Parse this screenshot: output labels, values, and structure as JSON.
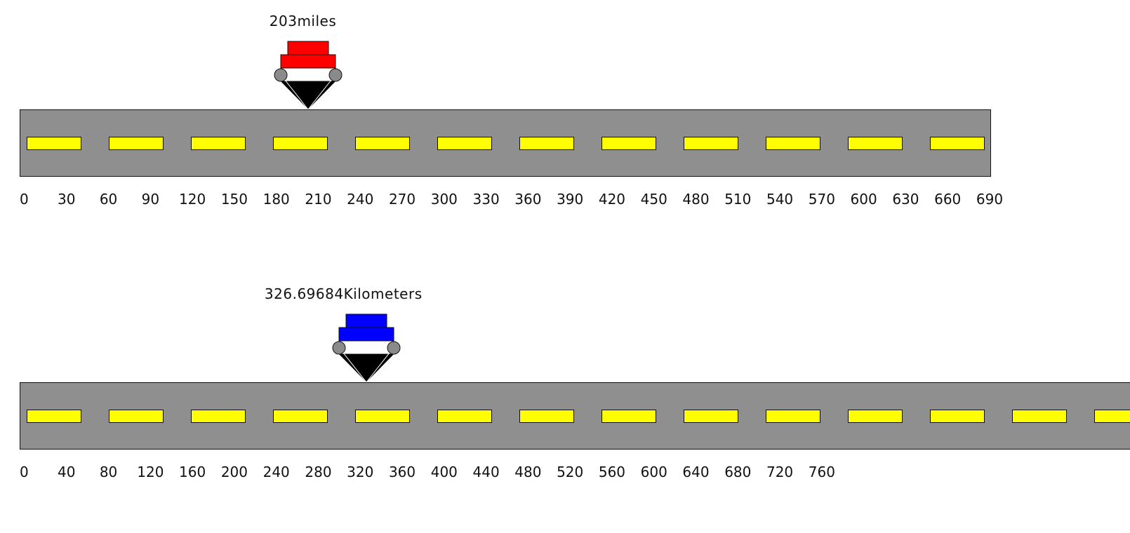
{
  "colors": {
    "road": "#8f8f8f",
    "lane_marking": "#ffff00",
    "wheel": "#8a8a8a",
    "miles_car": "#ff0000",
    "km_car": "#0000ff"
  },
  "miles_track": {
    "readout_value": "203",
    "readout_unit": "miles",
    "position_value": 203,
    "scale_max": 690,
    "ticks": [
      "0",
      "30",
      "60",
      "90",
      "120",
      "150",
      "180",
      "210",
      "240",
      "270",
      "300",
      "330",
      "360",
      "390",
      "420",
      "450",
      "480",
      "510",
      "540",
      "570",
      "600",
      "630",
      "660",
      "690"
    ]
  },
  "km_track": {
    "readout_value": "326.69684",
    "readout_unit": "Kilometers",
    "position_value": 326.69684,
    "scale_step": 40,
    "ticks": [
      "0",
      "40",
      "80",
      "120",
      "160",
      "200",
      "240",
      "280",
      "320",
      "360",
      "400",
      "440",
      "480",
      "520",
      "560",
      "600",
      "640",
      "680",
      "720",
      "760"
    ]
  }
}
